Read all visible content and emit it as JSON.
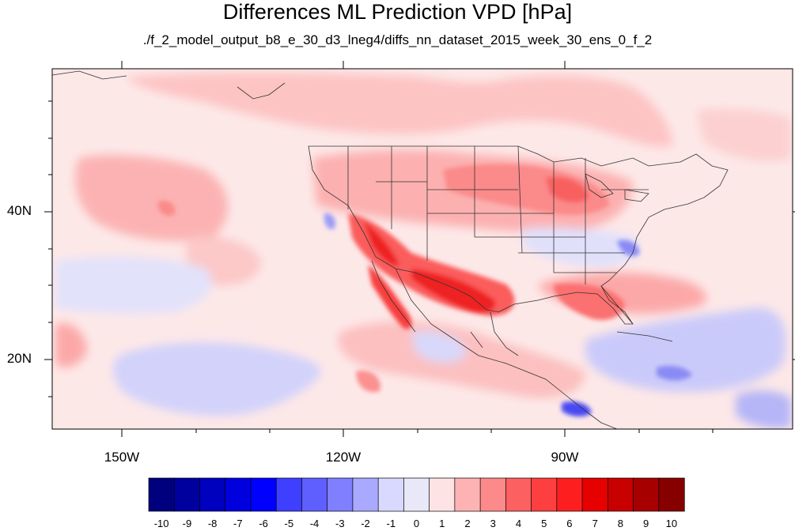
{
  "title": "Differences ML Prediction VPD [hPa]",
  "subtitle": "./f_2_model_output_b8_e_30_d3_lneg4/diffs_nn_dataset_2015_week_30_ens_0_f_2",
  "map": {
    "projection": "cylindrical equidistant",
    "extent": {
      "lon": [
        -160,
        -60
      ],
      "lat": [
        10,
        58
      ]
    },
    "longitude_labels": [
      "150W",
      "120W",
      "90W"
    ],
    "latitude_labels": [
      "40N",
      "20N"
    ]
  },
  "colorbar": {
    "orientation": "horizontal",
    "labels": [
      "-10",
      "-9",
      "-8",
      "-7",
      "-6",
      "-5",
      "-4",
      "-3",
      "-2",
      "-1",
      "0",
      "1",
      "2",
      "3",
      "4",
      "5",
      "6",
      "7",
      "8",
      "9",
      "10"
    ],
    "colors": [
      "#00007f",
      "#00009f",
      "#0000bf",
      "#0000df",
      "#0000ff",
      "#3f3fff",
      "#5f5fff",
      "#7f7fff",
      "#a9a9ff",
      "#d9d9ff",
      "#e8e8f8",
      "#fde3e3",
      "#fdb3b3",
      "#fd8a8a",
      "#fd6060",
      "#fd3f3f",
      "#fd1f1f",
      "#e60000",
      "#c80000",
      "#a60000",
      "#870000"
    ]
  }
}
